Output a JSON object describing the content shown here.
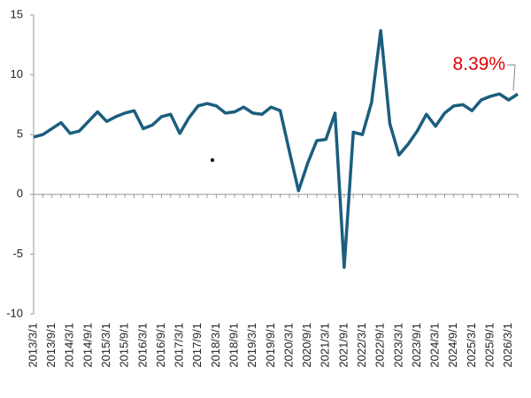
{
  "chart_data": {
    "type": "line",
    "categories": [
      "2013/3/1",
      null,
      "2013/9/1",
      null,
      "2014/3/1",
      null,
      "2014/9/1",
      null,
      "2015/3/1",
      null,
      "2015/9/1",
      null,
      "2016/3/1",
      null,
      "2016/9/1",
      null,
      "2017/3/1",
      null,
      "2017/9/1",
      null,
      "2018/3/1",
      null,
      "2018/9/1",
      null,
      "2019/3/1",
      null,
      "2019/9/1",
      null,
      "2020/3/1",
      null,
      "2020/9/1",
      null,
      "2021/3/1",
      null,
      "2021/9/1",
      null,
      "2022/3/1",
      null,
      "2022/9/1",
      null,
      "2023/3/1",
      null,
      "2023/9/1",
      null,
      "2024/3/1",
      null,
      "2024/9/1",
      null,
      "2025/3/1",
      null,
      "2025/9/1",
      null,
      "2026/3/1",
      null
    ],
    "values": [
      4.8,
      5.0,
      5.5,
      6.0,
      5.1,
      5.3,
      6.1,
      6.9,
      6.1,
      6.5,
      6.8,
      7.0,
      5.5,
      5.8,
      6.5,
      6.7,
      5.1,
      6.4,
      7.4,
      7.6,
      7.4,
      6.8,
      6.9,
      7.3,
      6.8,
      6.7,
      7.3,
      7.0,
      3.6,
      0.3,
      2.6,
      4.5,
      4.6,
      6.8,
      -6.1,
      5.2,
      5.0,
      7.7,
      13.7,
      5.9,
      3.3,
      4.2,
      5.3,
      6.7,
      5.7,
      6.8,
      7.4,
      7.5,
      7.0,
      7.9,
      8.2,
      8.4,
      7.9,
      8.39
    ],
    "value_labels": [
      null,
      null,
      null,
      null,
      null,
      null,
      null,
      null,
      null,
      null,
      null,
      null,
      null,
      null,
      null,
      null,
      null,
      null,
      null,
      null,
      null,
      null,
      null,
      null,
      null,
      null,
      null,
      null,
      null,
      null,
      null,
      null,
      null,
      null,
      null,
      null,
      null,
      null,
      null,
      null,
      null,
      null,
      null,
      null,
      null,
      null,
      null,
      null,
      null,
      null,
      null,
      null,
      null,
      "8.39%"
    ],
    "color": "#1b5e7e",
    "ylim": [
      -10,
      15
    ],
    "yticks": [
      -10,
      -5,
      0,
      5,
      10,
      15
    ]
  }
}
